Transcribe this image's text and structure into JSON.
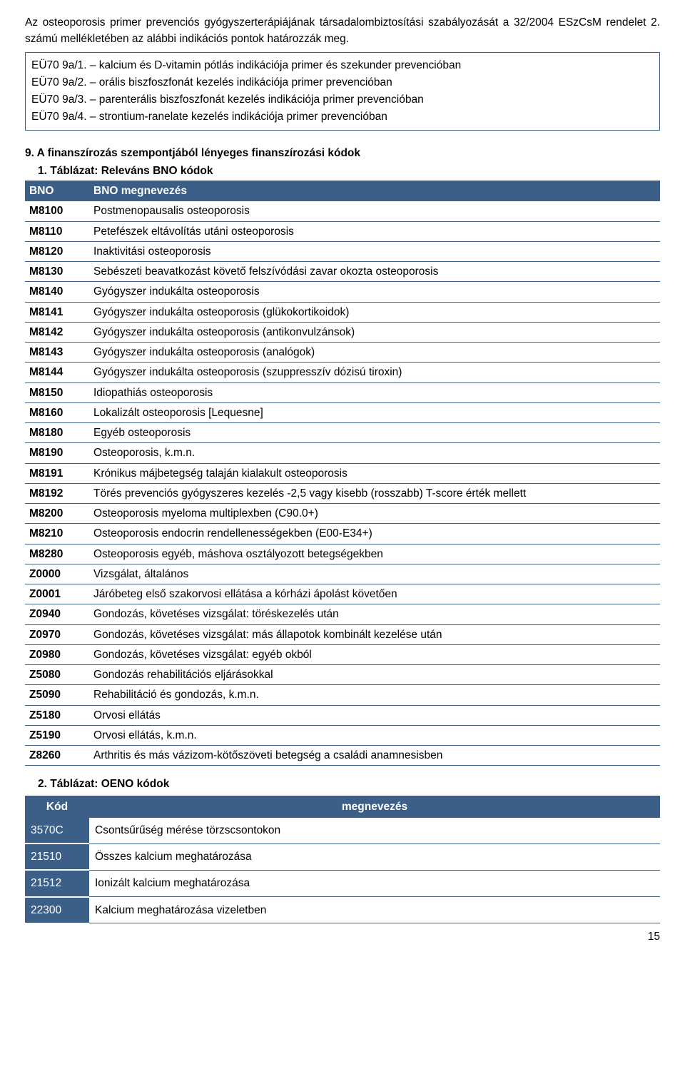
{
  "intro": {
    "para": "Az osteoporosis primer prevenciós gyógyszerterápiájának társadalombiztosítási szabályozását a 32/2004 ESzCsM rendelet 2. számú mellékletében az alábbi indikációs pontok határozzák meg."
  },
  "box": {
    "lines": [
      "EÜ70 9a/1. – kalcium és D-vitamin pótlás indikációja primer és szekunder prevencióban",
      "EÜ70 9a/2. – orális biszfoszfonát kezelés indikációja primer prevencióban",
      "EÜ70 9a/3. – parenterális biszfoszfonát kezelés indikációja primer prevencióban",
      "EÜ70 9a/4. – strontium-ranelate kezelés indikációja primer prevencióban"
    ]
  },
  "section9": {
    "heading": "9.  A finanszírozás szempontjából lényeges finanszírozási kódok"
  },
  "table1": {
    "title": "1. Táblázat: Releváns BNO kódok",
    "headers": {
      "code": "BNO",
      "desc": "BNO megnevezés"
    },
    "rows": [
      {
        "code": "M8100",
        "desc": "Postmenopausalis osteoporosis"
      },
      {
        "code": "M8110",
        "desc": "Petefészek eltávolítás utáni osteoporosis"
      },
      {
        "code": "M8120",
        "desc": "Inaktivitási osteoporosis"
      },
      {
        "code": "M8130",
        "desc": "Sebészeti beavatkozást követő felszívódási zavar okozta osteoporosis"
      },
      {
        "code": "M8140",
        "desc": "Gyógyszer indukálta osteoporosis"
      },
      {
        "code": "M8141",
        "desc": "Gyógyszer indukálta osteoporosis (glükokortikoidok)"
      },
      {
        "code": "M8142",
        "desc": "Gyógyszer indukálta osteoporosis (antikonvulzánsok)"
      },
      {
        "code": "M8143",
        "desc": "Gyógyszer indukálta osteoporosis (analógok)"
      },
      {
        "code": "M8144",
        "desc": "Gyógyszer indukálta osteoporosis (szuppresszív dózisú tiroxin)"
      },
      {
        "code": "M8150",
        "desc": "Idiopathiás osteoporosis"
      },
      {
        "code": "M8160",
        "desc": "Lokalizált osteoporosis [Lequesne]"
      },
      {
        "code": "M8180",
        "desc": "Egyéb osteoporosis"
      },
      {
        "code": "M8190",
        "desc": "Osteoporosis, k.m.n."
      },
      {
        "code": "M8191",
        "desc": "Krónikus májbetegség talaján kialakult osteoporosis"
      },
      {
        "code": "M8192",
        "desc": "Törés prevenciós gyógyszeres kezelés -2,5 vagy kisebb (rosszabb) T-score érték mellett"
      },
      {
        "code": "M8200",
        "desc": "Osteoporosis myeloma multiplexben (C90.0+)"
      },
      {
        "code": "M8210",
        "desc": "Osteoporosis endocrin rendellenességekben (E00-E34+)"
      },
      {
        "code": "M8280",
        "desc": "Osteoporosis egyéb, máshova osztályozott betegségekben"
      },
      {
        "code": "Z0000",
        "desc": "Vizsgálat, általános"
      },
      {
        "code": "Z0001",
        "desc": "Járóbeteg első szakorvosi ellátása a kórházi ápolást követően"
      },
      {
        "code": "Z0940",
        "desc": "Gondozás, követéses vizsgálat: töréskezelés után"
      },
      {
        "code": "Z0970",
        "desc": "Gondozás, követéses vizsgálat: más állapotok kombinált kezelése után"
      },
      {
        "code": "Z0980",
        "desc": "Gondozás, követéses vizsgálat: egyéb okból"
      },
      {
        "code": "Z5080",
        "desc": "Gondozás rehabilitációs eljárásokkal"
      },
      {
        "code": "Z5090",
        "desc": "Rehabilitáció és gondozás, k.m.n."
      },
      {
        "code": "Z5180",
        "desc": "Orvosi ellátás"
      },
      {
        "code": "Z5190",
        "desc": "Orvosi ellátás, k.m.n."
      },
      {
        "code": "Z8260",
        "desc": "Arthritis és más vázizom-kötőszöveti betegség a családi anamnesisben"
      }
    ]
  },
  "table2": {
    "title": "2. Táblázat: OENO kódok",
    "headers": {
      "code": "Kód",
      "desc": "megnevezés"
    },
    "rows": [
      {
        "code": "3570C",
        "desc": "Csontsűrűség mérése törzscsontokon"
      },
      {
        "code": "21510",
        "desc": "Összes kalcium meghatározása"
      },
      {
        "code": "21512",
        "desc": "Ionizált kalcium meghatározása"
      },
      {
        "code": "22300",
        "desc": "Kalcium meghatározása vizeletben"
      }
    ]
  },
  "pageNumber": "15",
  "colors": {
    "headerBg": "#3b5f87",
    "headerText": "#ffffff",
    "rowBorder": "#3b5f87",
    "bodyText": "#000000",
    "pageBg": "#ffffff"
  }
}
